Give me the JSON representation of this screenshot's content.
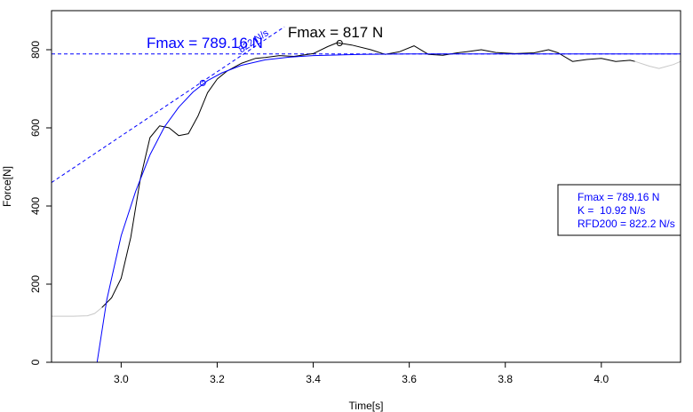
{
  "chart_data": {
    "type": "line",
    "title": "",
    "xlabel": "Time[s]",
    "ylabel": "Force[N]",
    "xlim": [
      2.855,
      4.165
    ],
    "ylim": [
      0,
      900
    ],
    "x_ticks": [
      3.0,
      3.2,
      3.4,
      3.6,
      3.8,
      4.0
    ],
    "x_tick_labels": [
      "3.0",
      "3.2",
      "3.4",
      "3.6",
      "3.8",
      "4.0"
    ],
    "y_ticks": [
      0,
      200,
      400,
      600,
      800
    ],
    "y_tick_labels": [
      "0",
      "200",
      "400",
      "600",
      "800"
    ],
    "grid": false,
    "series": [
      {
        "role": "baseline",
        "color": "#c8c8c8",
        "x": [
          2.855,
          2.9,
          2.93,
          2.945,
          2.96
        ],
        "y": [
          118,
          118,
          119,
          125,
          140
        ]
      },
      {
        "role": "measured",
        "color": "#000000",
        "x": [
          2.96,
          2.98,
          3.0,
          3.02,
          3.04,
          3.06,
          3.08,
          3.1,
          3.12,
          3.14,
          3.16,
          3.18,
          3.2,
          3.22,
          3.25,
          3.28,
          3.3,
          3.33,
          3.36,
          3.4,
          3.43,
          3.45,
          3.48,
          3.52,
          3.55,
          3.58,
          3.61,
          3.64,
          3.67,
          3.7,
          3.72,
          3.75,
          3.78,
          3.82,
          3.86,
          3.89,
          3.91,
          3.94,
          3.97,
          4.0,
          4.03,
          4.06,
          4.07
        ],
        "y": [
          140,
          165,
          215,
          320,
          470,
          575,
          605,
          600,
          580,
          585,
          630,
          690,
          725,
          745,
          765,
          778,
          780,
          785,
          783,
          790,
          808,
          818,
          812,
          800,
          788,
          795,
          810,
          788,
          786,
          792,
          795,
          800,
          793,
          790,
          792,
          800,
          792,
          770,
          775,
          778,
          770,
          773,
          770
        ]
      },
      {
        "role": "tail",
        "color": "#c8c8c8",
        "x": [
          4.07,
          4.1,
          4.12,
          4.15,
          4.165
        ],
        "y": [
          770,
          758,
          752,
          762,
          770
        ]
      },
      {
        "role": "model-fit",
        "color": "#0000ff",
        "x": [
          2.95,
          2.97,
          3.0,
          3.03,
          3.06,
          3.09,
          3.12,
          3.15,
          3.18,
          3.21,
          3.25,
          3.3,
          3.35,
          3.4,
          3.5,
          3.6,
          3.8,
          4.0,
          4.165
        ],
        "y": [
          0,
          160,
          324,
          437,
          531,
          602,
          653,
          692,
          721,
          741,
          760,
          774,
          781,
          785,
          788,
          789,
          789.16,
          789.16,
          789.16
        ]
      }
    ],
    "fmax_level": 789.16,
    "tangent": {
      "label": "822 N/s",
      "x0": 2.855,
      "y0": 460,
      "slope": 822,
      "x1": 3.34
    },
    "fit_point": {
      "x": 3.17,
      "y": 715
    },
    "peak_point": {
      "x": 3.455,
      "y": 817
    },
    "annotations": {
      "fit_fmax": "Fmax = 789.16 N",
      "measured_fmax": "Fmax = 817 N"
    },
    "legend": {
      "position": "right",
      "lines": [
        "Fmax = 789.16 N",
        "K =  10.92 N/s",
        "RFD200 = 822.2 N/s"
      ]
    },
    "colors": {
      "fit": "#0000ff",
      "measured": "#000000",
      "inactive": "#c8c8c8"
    }
  }
}
